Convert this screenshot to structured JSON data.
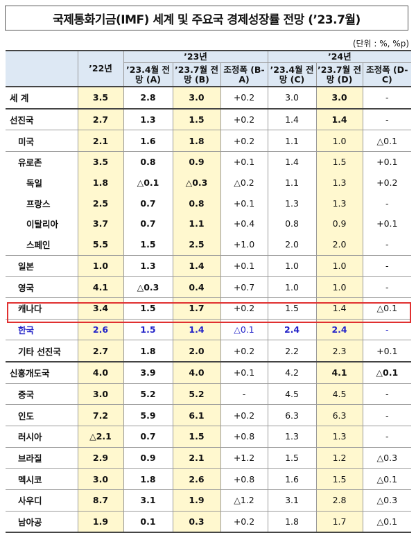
{
  "title": "국제통화기금(IMF) 세계 및 주요국 경제성장률 전망 (’23.7월)",
  "unit": "(단위 : %, %p)",
  "header": {
    "col_22": "’22년",
    "group_23": "’23년",
    "group_24": "’24년",
    "sub_23": [
      "’23.4월 전망 (A)",
      "’23.7월 전망 (B)",
      "조정폭 (B-A)"
    ],
    "sub_24": [
      "’23.4월 전망 (C)",
      "’23.7월 전망 (D)",
      "조정폭 (D-C)"
    ]
  },
  "rows": [
    {
      "name": "세  계",
      "indent": 0,
      "v22": "3.5",
      "a": "2.8",
      "b": "3.0",
      "ba": "+0.2",
      "c": "3.0",
      "d": "3.0",
      "dc": "-",
      "sep": "thick"
    },
    {
      "name": "선진국",
      "indent": 0,
      "v22": "2.7",
      "a": "1.3",
      "b": "1.5",
      "ba": "+0.2",
      "c": "1.4",
      "d": "1.4",
      "dc": "-",
      "sep": "thick"
    },
    {
      "name": "미국",
      "indent": 1,
      "v22": "2.1",
      "a": "1.6",
      "b": "1.8",
      "ba": "+0.2",
      "c": "1.1",
      "d": "1.0",
      "dc": "△0.1",
      "sep": "thin"
    },
    {
      "name": "유로존",
      "indent": 1,
      "v22": "3.5",
      "a": "0.8",
      "b": "0.9",
      "ba": "+0.1",
      "c": "1.4",
      "d": "1.5",
      "dc": "+0.1",
      "sep": "thin"
    },
    {
      "name": "독일",
      "indent": 2,
      "v22": "1.8",
      "a": "△0.1",
      "b": "△0.3",
      "ba": "△0.2",
      "c": "1.1",
      "d": "1.3",
      "dc": "+0.2",
      "sep": "none"
    },
    {
      "name": "프랑스",
      "indent": 2,
      "v22": "2.5",
      "a": "0.7",
      "b": "0.8",
      "ba": "+0.1",
      "c": "1.3",
      "d": "1.3",
      "dc": "-",
      "sep": "none"
    },
    {
      "name": "이탈리아",
      "indent": 2,
      "v22": "3.7",
      "a": "0.7",
      "b": "1.1",
      "ba": "+0.4",
      "c": "0.8",
      "d": "0.9",
      "dc": "+0.1",
      "sep": "none"
    },
    {
      "name": "스페인",
      "indent": 2,
      "v22": "5.5",
      "a": "1.5",
      "b": "2.5",
      "ba": "+1.0",
      "c": "2.0",
      "d": "2.0",
      "dc": "-",
      "sep": "none"
    },
    {
      "name": "일본",
      "indent": 1,
      "v22": "1.0",
      "a": "1.3",
      "b": "1.4",
      "ba": "+0.1",
      "c": "1.0",
      "d": "1.0",
      "dc": "-",
      "sep": "thin"
    },
    {
      "name": "영국",
      "indent": 1,
      "v22": "4.1",
      "a": "△0.3",
      "b": "0.4",
      "ba": "+0.7",
      "c": "1.0",
      "d": "1.0",
      "dc": "-",
      "sep": "thin"
    },
    {
      "name": "캐나다",
      "indent": 1,
      "v22": "3.4",
      "a": "1.5",
      "b": "1.7",
      "ba": "+0.2",
      "c": "1.5",
      "d": "1.4",
      "dc": "△0.1",
      "sep": "thin"
    },
    {
      "name": "한국",
      "indent": 1,
      "v22": "2.6",
      "a": "1.5",
      "b": "1.4",
      "ba": "△0.1",
      "c": "2.4",
      "d": "2.4",
      "dc": "-",
      "sep": "thin",
      "highlight": true
    },
    {
      "name": "기타 선진국",
      "indent": 1,
      "v22": "2.7",
      "a": "1.8",
      "b": "2.0",
      "ba": "+0.2",
      "c": "2.2",
      "d": "2.3",
      "dc": "+0.1",
      "sep": "thin"
    },
    {
      "name": "신흥개도국",
      "indent": 0,
      "v22": "4.0",
      "a": "3.9",
      "b": "4.0",
      "ba": "+0.1",
      "c": "4.2",
      "d": "4.1",
      "dc": "△0.1",
      "sep": "thick"
    },
    {
      "name": "중국",
      "indent": 1,
      "v22": "3.0",
      "a": "5.2",
      "b": "5.2",
      "ba": "-",
      "c": "4.5",
      "d": "4.5",
      "dc": "-",
      "sep": "thin"
    },
    {
      "name": "인도",
      "indent": 1,
      "v22": "7.2",
      "a": "5.9",
      "b": "6.1",
      "ba": "+0.2",
      "c": "6.3",
      "d": "6.3",
      "dc": "-",
      "sep": "thin"
    },
    {
      "name": "러시아",
      "indent": 1,
      "v22": "△2.1",
      "a": "0.7",
      "b": "1.5",
      "ba": "+0.8",
      "c": "1.3",
      "d": "1.3",
      "dc": "-",
      "sep": "thin"
    },
    {
      "name": "브라질",
      "indent": 1,
      "v22": "2.9",
      "a": "0.9",
      "b": "2.1",
      "ba": "+1.2",
      "c": "1.5",
      "d": "1.2",
      "dc": "△0.3",
      "sep": "thin"
    },
    {
      "name": "멕시코",
      "indent": 1,
      "v22": "3.0",
      "a": "1.8",
      "b": "2.6",
      "ba": "+0.8",
      "c": "1.6",
      "d": "1.5",
      "dc": "△0.1",
      "sep": "thin"
    },
    {
      "name": "사우디",
      "indent": 1,
      "v22": "8.7",
      "a": "3.1",
      "b": "1.9",
      "ba": "△1.2",
      "c": "3.1",
      "d": "2.8",
      "dc": "△0.3",
      "sep": "thin"
    },
    {
      "name": "남아공",
      "indent": 1,
      "v22": "1.9",
      "a": "0.1",
      "b": "0.3",
      "ba": "+0.2",
      "c": "1.8",
      "d": "1.7",
      "dc": "△0.1",
      "sep": "thin"
    }
  ]
}
